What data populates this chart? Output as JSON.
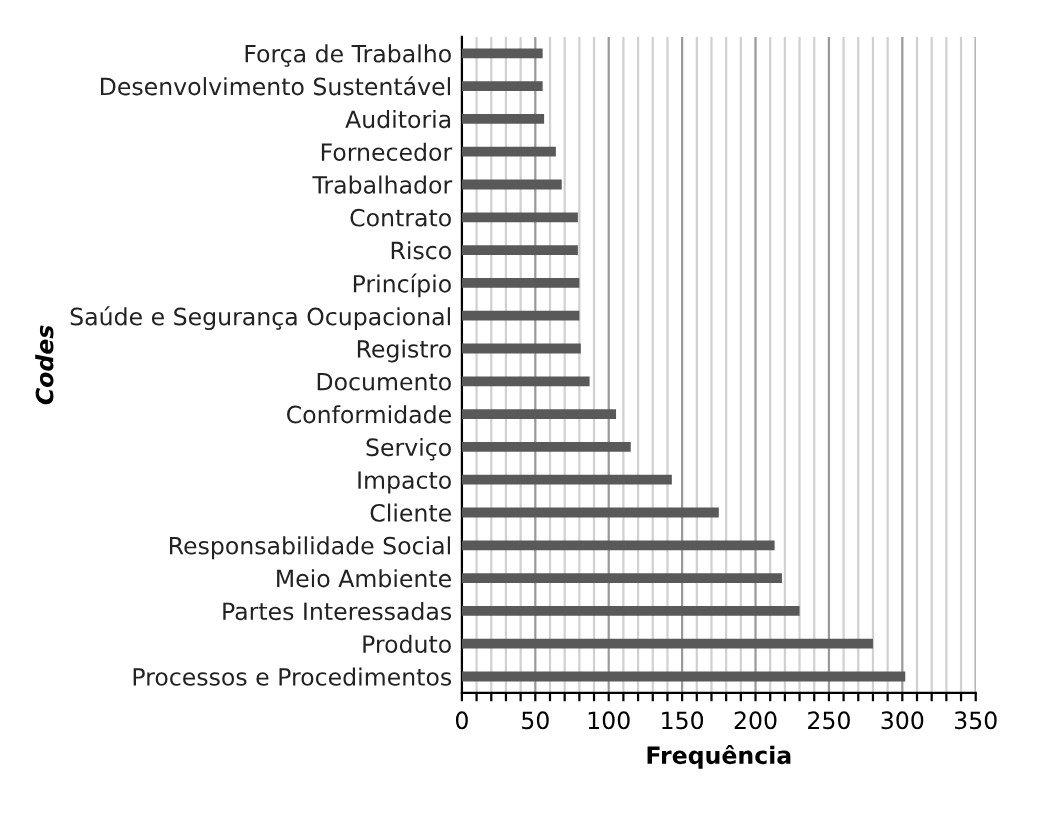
{
  "chart_data": {
    "type": "bar",
    "orientation": "horizontal",
    "xlabel": "Frequência",
    "ylabel": "Codes",
    "categories": [
      "Força de Trabalho",
      "Desenvolvimento Sustentável",
      "Auditoria",
      "Fornecedor",
      "Trabalhador",
      "Contrato",
      "Risco",
      "Princípio",
      "Saúde e Segurança Ocupacional",
      "Registro",
      "Documento",
      "Conformidade",
      "Serviço",
      "Impacto",
      "Cliente",
      "Responsabilidade Social",
      "Meio Ambiente",
      "Partes Interessadas",
      "Produto",
      "Processos e Procedimentos"
    ],
    "values": [
      55,
      55,
      56,
      64,
      68,
      79,
      79,
      80,
      80,
      81,
      87,
      105,
      115,
      143,
      175,
      213,
      218,
      230,
      280,
      302
    ],
    "color": "#595959",
    "xlim": [
      0,
      350
    ],
    "xticks": [
      0,
      {
        "value": 10,
        "label": null
      },
      {
        "value": 20,
        "label": null
      },
      {
        "value": 30,
        "label": null
      },
      {
        "value": 40,
        "label": null
      },
      50,
      {
        "value": 60,
        "label": null
      },
      {
        "value": 70,
        "label": null
      },
      {
        "value": 80,
        "label": null
      },
      {
        "value": 90,
        "label": null
      },
      100,
      {
        "value": 110,
        "label": null
      },
      {
        "value": 120,
        "label": null
      },
      {
        "value": 130,
        "label": null
      },
      {
        "value": 140,
        "label": null
      },
      150,
      {
        "value": 160,
        "label": null
      },
      {
        "value": 170,
        "label": null
      },
      {
        "value": 180,
        "label": null
      },
      {
        "value": 190,
        "label": null
      },
      200,
      {
        "value": 210,
        "label": null
      },
      {
        "value": 220,
        "label": null
      },
      {
        "value": 230,
        "label": null
      },
      {
        "value": 240,
        "label": null
      },
      250,
      {
        "value": 260,
        "label": null
      },
      {
        "value": 270,
        "label": null
      },
      {
        "value": 280,
        "label": null
      },
      {
        "value": 290,
        "label": null
      },
      300,
      {
        "value": 310,
        "label": null
      },
      {
        "value": 320,
        "label": null
      },
      {
        "value": 330,
        "label": null
      },
      {
        "value": 340,
        "label": null
      },
      350
    ],
    "grid": "x"
  }
}
